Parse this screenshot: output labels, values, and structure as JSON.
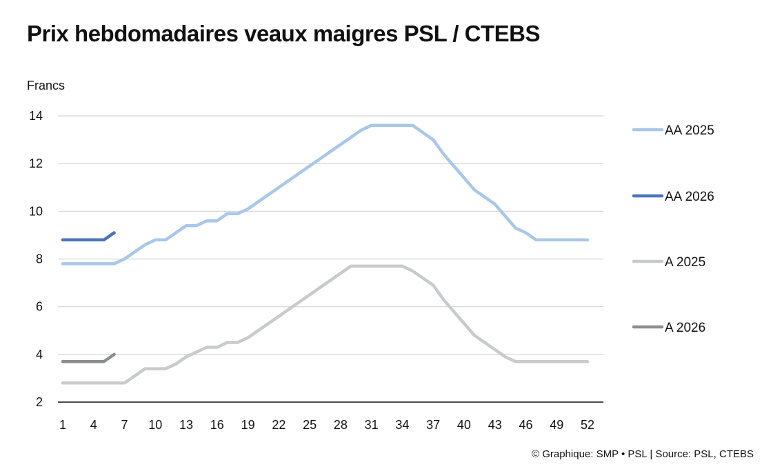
{
  "chart_data": {
    "type": "line",
    "title": "Prix hebdomadaires veaux maigres PSL / CTEBS",
    "ylabel": "Francs",
    "xlabel": "",
    "ylim": [
      2,
      14
    ],
    "yticks": [
      2,
      4,
      6,
      8,
      10,
      12,
      14
    ],
    "xlim": [
      1,
      52
    ],
    "xticks": [
      1,
      4,
      7,
      10,
      13,
      16,
      19,
      22,
      25,
      28,
      31,
      34,
      37,
      40,
      43,
      46,
      49,
      52
    ],
    "grid": true,
    "legend_position": "right",
    "series": [
      {
        "name": "AA 2025",
        "color": "#a9c7e8",
        "x": [
          1,
          2,
          3,
          4,
          5,
          6,
          7,
          8,
          9,
          10,
          11,
          12,
          13,
          14,
          15,
          16,
          17,
          18,
          19,
          20,
          21,
          22,
          23,
          24,
          25,
          26,
          27,
          28,
          29,
          30,
          31,
          32,
          33,
          34,
          35,
          36,
          37,
          38,
          39,
          40,
          41,
          42,
          43,
          44,
          45,
          46,
          47,
          48,
          49,
          50,
          51,
          52
        ],
        "values": [
          7.8,
          7.8,
          7.8,
          7.8,
          7.8,
          7.8,
          8.0,
          8.3,
          8.6,
          8.8,
          8.8,
          9.1,
          9.4,
          9.4,
          9.6,
          9.6,
          9.9,
          9.9,
          10.1,
          10.4,
          10.7,
          11.0,
          11.3,
          11.6,
          11.9,
          12.2,
          12.5,
          12.8,
          13.1,
          13.4,
          13.6,
          13.6,
          13.6,
          13.6,
          13.6,
          13.3,
          13.0,
          12.4,
          11.9,
          11.4,
          10.9,
          10.6,
          10.3,
          9.8,
          9.3,
          9.1,
          8.8,
          8.8,
          8.8,
          8.8,
          8.8,
          8.8
        ]
      },
      {
        "name": "AA 2026",
        "color": "#4a73b8",
        "x": [
          1,
          2,
          3,
          4,
          5,
          6
        ],
        "values": [
          8.8,
          8.8,
          8.8,
          8.8,
          8.8,
          9.1
        ]
      },
      {
        "name": "A 2025",
        "color": "#c9cacb",
        "x": [
          1,
          2,
          3,
          4,
          5,
          6,
          7,
          8,
          9,
          10,
          11,
          12,
          13,
          14,
          15,
          16,
          17,
          18,
          19,
          20,
          21,
          22,
          23,
          24,
          25,
          26,
          27,
          28,
          29,
          30,
          31,
          32,
          33,
          34,
          35,
          36,
          37,
          38,
          39,
          40,
          41,
          42,
          43,
          44,
          45,
          46,
          47,
          48,
          49,
          50,
          51,
          52
        ],
        "values": [
          2.8,
          2.8,
          2.8,
          2.8,
          2.8,
          2.8,
          2.8,
          3.1,
          3.4,
          3.4,
          3.4,
          3.6,
          3.9,
          4.1,
          4.3,
          4.3,
          4.5,
          4.5,
          4.7,
          5.0,
          5.3,
          5.6,
          5.9,
          6.2,
          6.5,
          6.8,
          7.1,
          7.4,
          7.7,
          7.7,
          7.7,
          7.7,
          7.7,
          7.7,
          7.5,
          7.2,
          6.9,
          6.3,
          5.8,
          5.3,
          4.8,
          4.5,
          4.2,
          3.9,
          3.7,
          3.7,
          3.7,
          3.7,
          3.7,
          3.7,
          3.7,
          3.7
        ]
      },
      {
        "name": "A 2026",
        "color": "#8c8d8f",
        "x": [
          1,
          2,
          3,
          4,
          5,
          6
        ],
        "values": [
          3.7,
          3.7,
          3.7,
          3.7,
          3.7,
          4.0
        ]
      }
    ]
  },
  "footer": {
    "credit": "© Graphique: SMP • PSL | Source: PSL, CTEBS"
  }
}
